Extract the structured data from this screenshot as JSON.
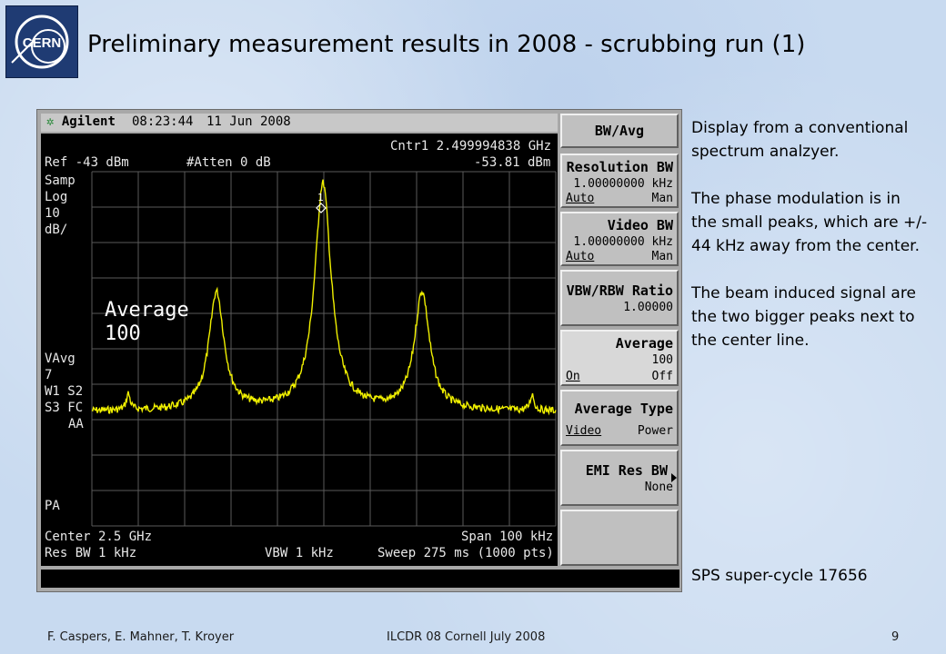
{
  "slide": {
    "title": "Preliminary measurement results in 2008 - scrubbing run (1)",
    "logo_text": "CERN"
  },
  "analyzer": {
    "brand": "Agilent",
    "time": "08:23:44",
    "date": "11 Jun 2008",
    "marker_line1": "Cntr1  2.499994838 GHz",
    "marker_line2": "-53.81 dBm",
    "ref": "Ref -43 dBm",
    "atten": "#Atten 0 dB",
    "left_labels": [
      "Samp",
      "Log",
      "10",
      "dB/"
    ],
    "vavg_labels": [
      "VAvg",
      "7"
    ],
    "w1s2": "W1  S2",
    "s3fc": "S3  FC",
    "aa": "AA",
    "pa": "PA",
    "average_title": "Average",
    "average_value": "100",
    "marker_number": "1",
    "center": "Center 2.5 GHz",
    "span": "Span 100 kHz",
    "res_bw": "Res BW 1 kHz",
    "vbw": "VBW 1 kHz",
    "sweep": "Sweep 275 ms (1000 pts)",
    "trace_color": "#f0f000"
  },
  "softkeys": {
    "header": "BW/Avg",
    "resolution_bw": {
      "label": "Resolution BW",
      "value": "1.00000000 kHz",
      "opt_left": "Auto",
      "opt_right": "Man"
    },
    "video_bw": {
      "label": "Video BW",
      "value": "1.00000000 kHz",
      "opt_left": "Auto",
      "opt_right": "Man"
    },
    "vbw_rbw_ratio": {
      "label": "VBW/RBW Ratio",
      "value": "1.00000"
    },
    "average": {
      "label": "Average",
      "value": "100",
      "opt_left": "On",
      "opt_right": "Off"
    },
    "average_type": {
      "label": "Average Type",
      "opt_left": "Video",
      "opt_right": "Power"
    },
    "emi_res_bw": {
      "label": "EMI Res BW",
      "value": "None"
    }
  },
  "side": {
    "p1": "Display from a conventional spectrum analzyer.",
    "p2": "The phase modulation is in the small peaks, which are +/- 44 kHz away from the center.",
    "p3": "The beam induced signal are the two bigger peaks next to the center line.",
    "supercycle": "SPS super-cycle 17656"
  },
  "footer": {
    "authors": "F. Caspers, E. Mahner, T. Kroyer",
    "conference": "ILCDR 08 Cornell July 2008",
    "page": "9"
  }
}
